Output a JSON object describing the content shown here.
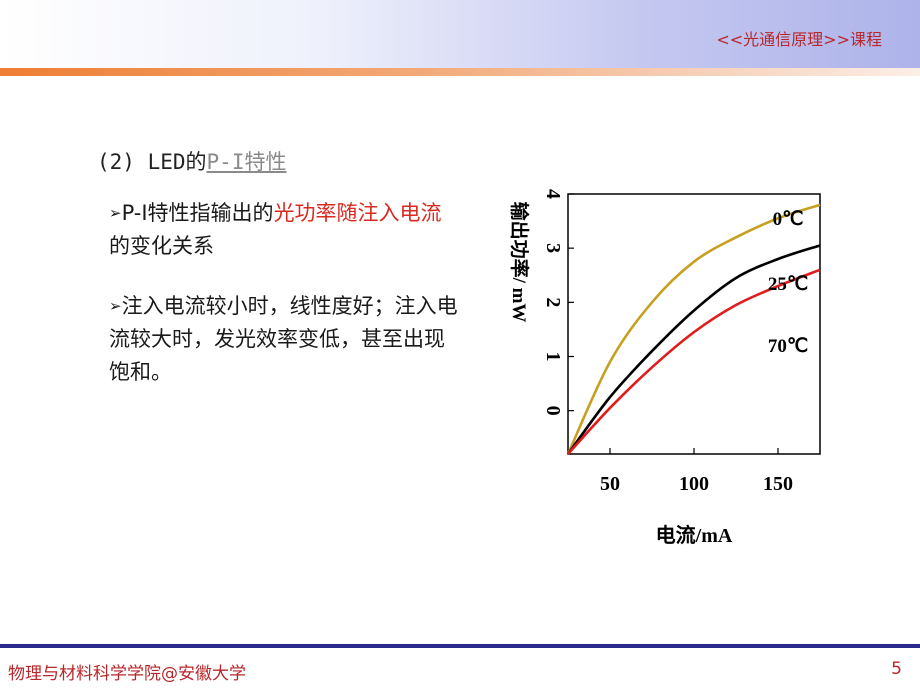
{
  "header": {
    "course_title": "<<光通信原理>>课程"
  },
  "section": {
    "number": "(2)",
    "prefix": "LED的",
    "link": "P-I特性"
  },
  "bullets": [
    {
      "arrow": "➢",
      "text_a": "P-I特性指输出的",
      "highlight": "光功率随注入电流",
      "text_b": "的变化关系"
    },
    {
      "arrow": "➢",
      "text": "注入电流较小时，线性度好；注入电流较大时，发光效率变低，甚至出现饱和。"
    }
  ],
  "chart_data": {
    "type": "line",
    "xlabel": "电流/mA",
    "ylabel": "输出功率/ mW",
    "x_ticks": [
      50,
      100,
      150
    ],
    "y_ticks": [
      0,
      1,
      2,
      3,
      4
    ],
    "xlim": [
      25,
      175
    ],
    "ylim": [
      -0.8,
      4.0
    ],
    "series": [
      {
        "name": "0℃",
        "color": "#c8a020",
        "points": [
          [
            25,
            -0.8
          ],
          [
            50,
            0.9
          ],
          [
            75,
            2.0
          ],
          [
            100,
            2.75
          ],
          [
            125,
            3.2
          ],
          [
            150,
            3.55
          ],
          [
            175,
            3.8
          ]
        ]
      },
      {
        "name": "25℃",
        "color": "#000000",
        "points": [
          [
            25,
            -0.8
          ],
          [
            50,
            0.25
          ],
          [
            75,
            1.1
          ],
          [
            100,
            1.85
          ],
          [
            125,
            2.45
          ],
          [
            150,
            2.8
          ],
          [
            175,
            3.05
          ]
        ]
      },
      {
        "name": "70℃",
        "color": "#e01c1c",
        "points": [
          [
            25,
            -0.8
          ],
          [
            50,
            0.05
          ],
          [
            75,
            0.8
          ],
          [
            100,
            1.45
          ],
          [
            125,
            1.95
          ],
          [
            150,
            2.3
          ],
          [
            175,
            2.6
          ]
        ]
      }
    ]
  },
  "footer": {
    "institution": "物理与材料科学学院@安徽大学",
    "page_number": "5"
  }
}
